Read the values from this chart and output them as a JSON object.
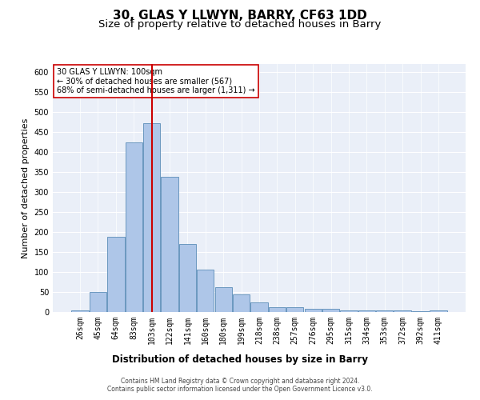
{
  "title": "30, GLAS Y LLWYN, BARRY, CF63 1DD",
  "subtitle": "Size of property relative to detached houses in Barry",
  "xlabel": "Distribution of detached houses by size in Barry",
  "ylabel": "Number of detached properties",
  "categories": [
    "26sqm",
    "45sqm",
    "64sqm",
    "83sqm",
    "103sqm",
    "122sqm",
    "141sqm",
    "160sqm",
    "180sqm",
    "199sqm",
    "218sqm",
    "238sqm",
    "257sqm",
    "276sqm",
    "295sqm",
    "315sqm",
    "334sqm",
    "353sqm",
    "372sqm",
    "392sqm",
    "411sqm"
  ],
  "values": [
    5,
    50,
    188,
    425,
    472,
    338,
    170,
    107,
    62,
    44,
    25,
    12,
    12,
    8,
    8,
    5,
    4,
    4,
    5,
    3,
    4
  ],
  "bar_color": "#aec6e8",
  "bar_edge_color": "#5b8db8",
  "vline_x": 4,
  "vline_color": "#cc0000",
  "annotation_text": "30 GLAS Y LLWYN: 100sqm\n← 30% of detached houses are smaller (567)\n68% of semi-detached houses are larger (1,311) →",
  "annotation_box_color": "#ffffff",
  "annotation_box_edge": "#cc0000",
  "ylim": [
    0,
    620
  ],
  "yticks": [
    0,
    50,
    100,
    150,
    200,
    250,
    300,
    350,
    400,
    450,
    500,
    550,
    600
  ],
  "background_color": "#eaeff8",
  "footer_line1": "Contains HM Land Registry data © Crown copyright and database right 2024.",
  "footer_line2": "Contains public sector information licensed under the Open Government Licence v3.0.",
  "title_fontsize": 11,
  "subtitle_fontsize": 9.5,
  "xlabel_fontsize": 8.5,
  "ylabel_fontsize": 8,
  "tick_fontsize": 7,
  "annotation_fontsize": 7,
  "footer_fontsize": 5.5
}
